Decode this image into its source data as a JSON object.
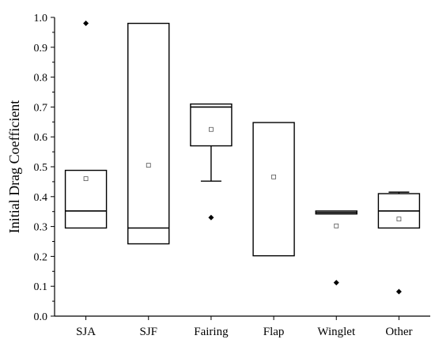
{
  "chart_data": {
    "type": "box",
    "title": "",
    "ylabel": "Initial Drag Coefficient",
    "xlabel": "",
    "ylim": [
      0.0,
      1.0
    ],
    "yticks": [
      "0.0",
      "0.1",
      "0.2",
      "0.3",
      "0.4",
      "0.5",
      "0.6",
      "0.7",
      "0.8",
      "0.9",
      "1.0"
    ],
    "categories": [
      "SJA",
      "SJF",
      "Fairing",
      "Flap",
      "Winglet",
      "Other"
    ],
    "boxes": [
      {
        "category": "SJA",
        "q1": 0.295,
        "median": 0.352,
        "q3": 0.488,
        "whisker_low": null,
        "whisker_high": null,
        "mean": 0.46,
        "outliers": [
          0.98
        ]
      },
      {
        "category": "SJF",
        "q1": 0.242,
        "median": 0.295,
        "q3": 0.98,
        "whisker_low": null,
        "whisker_high": null,
        "mean": 0.505,
        "outliers": []
      },
      {
        "category": "Fairing",
        "q1": 0.57,
        "median": 0.7,
        "q3": 0.71,
        "whisker_low": 0.452,
        "whisker_high": null,
        "mean": 0.625,
        "outliers": [
          0.33
        ]
      },
      {
        "category": "Flap",
        "q1": 0.202,
        "median": null,
        "q3": 0.648,
        "whisker_low": null,
        "whisker_high": null,
        "mean": 0.466,
        "outliers": []
      },
      {
        "category": "Winglet",
        "q1": 0.342,
        "median": 0.347,
        "q3": 0.352,
        "whisker_low": null,
        "whisker_high": null,
        "mean": 0.302,
        "outliers": [
          0.112
        ]
      },
      {
        "category": "Other",
        "q1": 0.295,
        "median": 0.352,
        "q3": 0.41,
        "whisker_low": null,
        "whisker_high": 0.415,
        "mean": 0.325,
        "outliers": [
          0.082
        ]
      }
    ]
  }
}
